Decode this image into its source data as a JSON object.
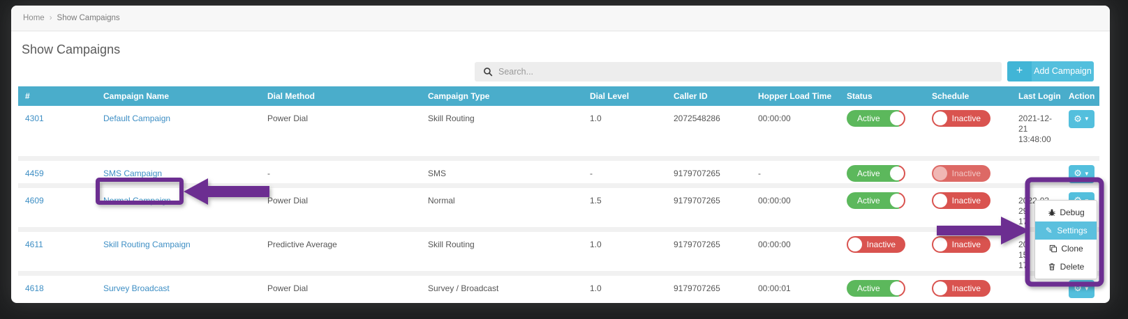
{
  "breadcrumb": {
    "items": [
      "Home",
      "Show Campaigns"
    ],
    "separator": "›"
  },
  "header": {
    "title": "Show Campaigns",
    "search_placeholder": "Search...",
    "add_button": "Add Campaign",
    "add_icon": "plus-icon",
    "search_icon": "search-icon"
  },
  "table": {
    "columns": [
      "#",
      "Campaign Name",
      "Dial Method",
      "Campaign Type",
      "Dial Level",
      "Caller ID",
      "Hopper Load Time",
      "Status",
      "Schedule",
      "Last Login",
      "Action"
    ],
    "rows": [
      {
        "id": "4301",
        "name": "Default Campaign",
        "dial_method": "Power Dial",
        "campaign_type": "Skill Routing",
        "dial_level": "1.0",
        "caller_id": "2072548286",
        "hopper_load_time": "00:00:00",
        "status": "Active",
        "schedule": "Inactive",
        "schedule_faded": false,
        "last_login_lines": [
          "2021-12-",
          "21",
          "13:48:00"
        ]
      },
      {
        "id": "4459",
        "name": "SMS Campaign",
        "dial_method": "-",
        "campaign_type": "SMS",
        "dial_level": "-",
        "caller_id": "9179707265",
        "hopper_load_time": "-",
        "status": "Active",
        "schedule": "Inactive",
        "schedule_faded": true,
        "last_login_lines": []
      },
      {
        "id": "4609",
        "name": "Normal Campaign",
        "dial_method": "Power Dial",
        "campaign_type": "Normal",
        "dial_level": "1.5",
        "caller_id": "9179707265",
        "hopper_load_time": "00:00:00",
        "status": "Active",
        "schedule": "Inactive",
        "schedule_faded": false,
        "last_login_lines": [
          "2022-03-",
          "29",
          "17:"
        ]
      },
      {
        "id": "4611",
        "name": "Skill Routing Campaign",
        "dial_method": "Predictive Average",
        "campaign_type": "Skill Routing",
        "dial_level": "1.0",
        "caller_id": "9179707265",
        "hopper_load_time": "00:00:00",
        "status": "Inactive",
        "schedule": "Inactive",
        "schedule_faded": false,
        "last_login_lines": [
          "20",
          "15",
          "17"
        ]
      },
      {
        "id": "4618",
        "name": "Survey Broadcast",
        "dial_method": "Power Dial",
        "campaign_type": "Survey / Broadcast",
        "dial_level": "1.0",
        "caller_id": "9179707265",
        "hopper_load_time": "00:00:01",
        "status": "Active",
        "schedule": "Inactive",
        "schedule_faded": false,
        "last_login_lines": []
      }
    ],
    "action_icon": "gear-icon",
    "action_caret": "caret-down-icon",
    "toggle_labels": {
      "active": "Active",
      "inactive": "Inactive"
    }
  },
  "action_menu": {
    "items": [
      {
        "icon": "bug-icon",
        "label": "Debug",
        "active": false
      },
      {
        "icon": "pencil-icon",
        "label": "Settings",
        "active": true
      },
      {
        "icon": "clone-icon",
        "label": "Clone",
        "active": false
      },
      {
        "icon": "trash-icon",
        "label": "Delete",
        "active": false
      }
    ]
  },
  "colors": {
    "table_header": "#4AADCB",
    "accent_blue": "#53BFDD",
    "active_green": "#5CB85C",
    "inactive_red": "#D9534F",
    "link_blue": "#3D8EC4",
    "menu_highlight": "#5BC0DE",
    "annotation_purple": "#6C2E91"
  }
}
